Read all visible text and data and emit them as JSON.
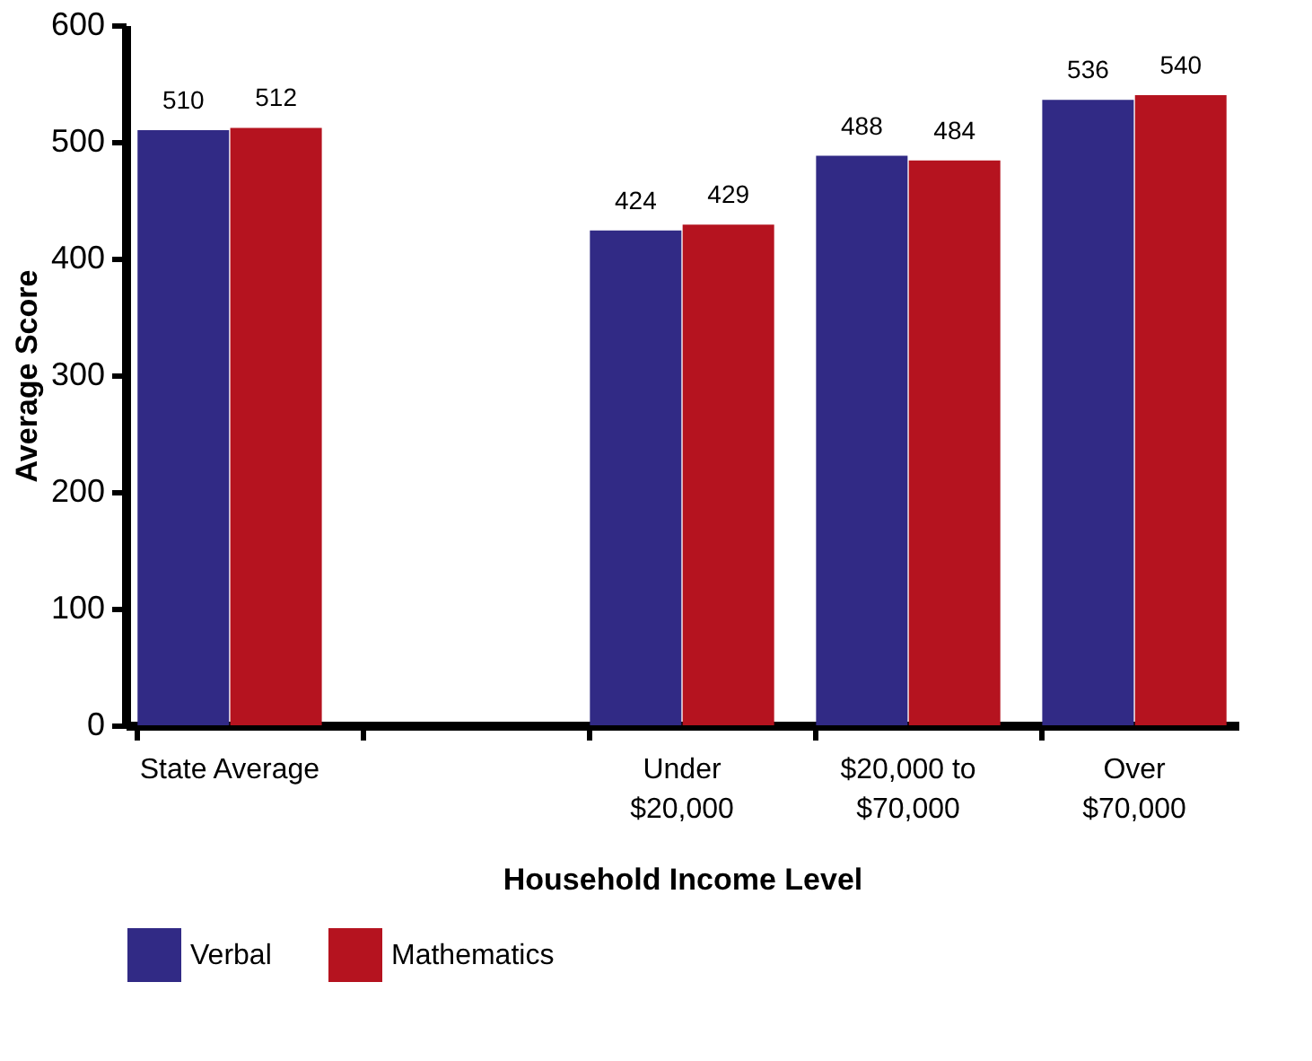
{
  "chart_data": {
    "type": "bar",
    "xlabel": "Household Income Level",
    "ylabel": "Average Score",
    "categories": [
      "State Average",
      null,
      "Under\n$20,000",
      "$20,000 to\n$70,000",
      "Over\n$70,000"
    ],
    "series": [
      {
        "name": "Verbal",
        "color": "#312a85",
        "values": [
          510,
          null,
          424,
          488,
          536
        ]
      },
      {
        "name": "Mathematics",
        "color": "#b5131f",
        "values": [
          512,
          null,
          429,
          484,
          540
        ]
      }
    ],
    "ylim": [
      0,
      600
    ],
    "yticks": [
      0,
      100,
      200,
      300,
      400,
      500,
      600
    ],
    "grid": false,
    "legend": "bottom",
    "data_labels": true
  }
}
